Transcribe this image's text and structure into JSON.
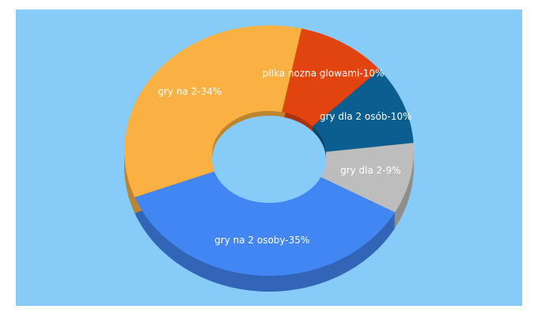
{
  "chart_data": {
    "type": "pie",
    "donut": true,
    "categories": [
      "pilka nozna glowami-10%",
      "gry dla 2 osób-10%",
      "gry dla 2-9%",
      "gry na 2 osoby-35%",
      "gry na 2-34%"
    ],
    "values": [
      10,
      10,
      9,
      35,
      34
    ],
    "colors": [
      "#e2440f",
      "#0b5f90",
      "#bdbdbd",
      "#4286f4",
      "#fab142"
    ]
  }
}
